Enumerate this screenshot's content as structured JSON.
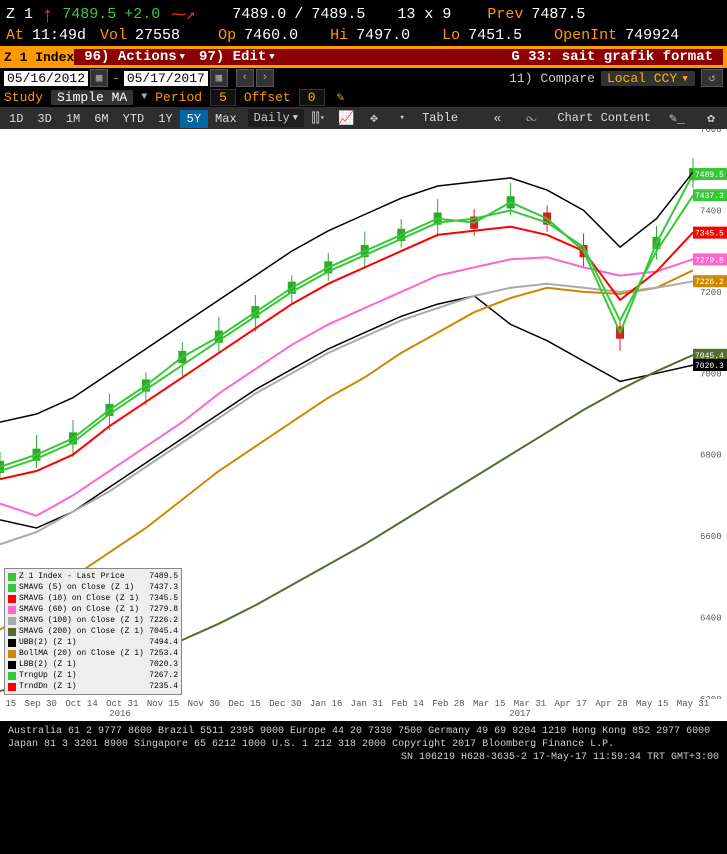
{
  "header": {
    "ticker": "Z 1",
    "last": "7489.5",
    "chg": "+2.0",
    "bid": "7489.0",
    "ask": "7489.5",
    "size": "13 x 9",
    "prev_label": "Prev",
    "prev": "7487.5",
    "at_label": "At",
    "at_time": "11:49d",
    "vol_label": "Vol",
    "vol": "27558",
    "op_label": "Op",
    "op": "7460.0",
    "hi_label": "Hi",
    "hi": "7497.0",
    "lo_label": "Lo",
    "lo": "7451.5",
    "oi_label": "OpenInt",
    "oi": "749924"
  },
  "bars": {
    "index_name": "Z 1 Index",
    "actions": "96) Actions",
    "edit": "97) Edit",
    "g33": "G 33: sait grafik format",
    "compare": "11) Compare",
    "ccy": "Local CCY"
  },
  "dates": {
    "from": "05/16/2012",
    "to": "05/17/2017"
  },
  "study": {
    "study_label": "Study",
    "study_val": "Simple MA",
    "period_label": "Period",
    "period_val": "5",
    "offset_label": "Offset",
    "offset_val": "0"
  },
  "tf": {
    "items": [
      "1D",
      "3D",
      "1M",
      "6M",
      "YTD",
      "1Y",
      "5Y",
      "Max"
    ],
    "active": "5Y",
    "daily": "Daily",
    "table": "Table",
    "chart_content": "Chart Content"
  },
  "legend": [
    {
      "label": "Z 1 Index - Last Price",
      "val": "7489.5",
      "color": "#37c837"
    },
    {
      "label": "SMAVG (5) on Close (Z 1)",
      "val": "7437.3",
      "color": "#37c837"
    },
    {
      "label": "SMAVG (10) on Close (Z 1)",
      "val": "7345.5",
      "color": "#ff0000"
    },
    {
      "label": "SMAVG (60) on Close (Z 1)",
      "val": "7279.8",
      "color": "#ff66cc"
    },
    {
      "label": "SMAVG (100) on Close (Z 1)",
      "val": "7226.2",
      "color": "#aaaaaa"
    },
    {
      "label": "SMAVG (200) on Close (Z 1)",
      "val": "7045.4",
      "color": "#556b2f"
    },
    {
      "label": "UBB(2) (Z 1)",
      "val": "7494.4",
      "color": "#000000"
    },
    {
      "label": "BollMA (20) on Close (Z 1)",
      "val": "7253.4",
      "color": "#cc8800"
    },
    {
      "label": "LBB(2) (Z 1)",
      "val": "7020.3",
      "color": "#000000"
    },
    {
      "label": "TrngUp (Z 1)",
      "val": "7267.2",
      "color": "#37c837"
    },
    {
      "label": "TrndDn (Z 1)",
      "val": "7235.4",
      "color": "#ff0000"
    }
  ],
  "chart": {
    "type": "financial-multi-line",
    "background_color": "#ffffff",
    "ymin": 6200,
    "ymax": 7600,
    "yticks": [
      6200,
      6400,
      6600,
      6800,
      7000,
      7200,
      7400,
      7600
    ],
    "ytick_color": "#5a5a5a",
    "price_tags": [
      {
        "val": "7489.5",
        "color": "#37c837"
      },
      {
        "val": "7437.3",
        "color": "#37c837"
      },
      {
        "val": "7345.5",
        "color": "#ff0000"
      },
      {
        "val": "7279.8",
        "color": "#ff66cc"
      },
      {
        "val": "7226.2",
        "color": "#cc8800"
      },
      {
        "val": "7045.4",
        "color": "#556b2f"
      },
      {
        "val": "7020.3",
        "color": "#000000"
      }
    ],
    "xticks": [
      "Sep 15",
      "Sep 30",
      "Oct 14",
      "Oct 31",
      "Nov 15",
      "Nov 30",
      "Dec 15",
      "Dec 30",
      "Jan 16",
      "Jan 31",
      "Feb 14",
      "Feb 28",
      "Mar 15",
      "Mar 31",
      "Apr 17",
      "Apr 28",
      "May 15",
      "May 31"
    ],
    "x_year_left": "2016",
    "x_year_right": "2017",
    "series": {
      "sma200": {
        "color": "#556b2f",
        "width": 2,
        "y": [
          6220,
          6235,
          6255,
          6280,
          6310,
          6345,
          6385,
          6430,
          6480,
          6530,
          6580,
          6635,
          6690,
          6745,
          6800,
          6855,
          6910,
          6960,
          7005,
          7045
        ]
      },
      "bollMA": {
        "color": "#cc8800",
        "width": 2,
        "y": [
          6370,
          6430,
          6500,
          6560,
          6620,
          6690,
          6760,
          6820,
          6880,
          6940,
          6990,
          7050,
          7100,
          7150,
          7185,
          7210,
          7200,
          7195,
          7210,
          7253
        ]
      },
      "sma100": {
        "color": "#aaaaaa",
        "width": 2,
        "y": [
          6580,
          6610,
          6660,
          6710,
          6770,
          6830,
          6890,
          6950,
          7000,
          7050,
          7090,
          7130,
          7160,
          7190,
          7210,
          7220,
          7210,
          7200,
          7210,
          7226
        ]
      },
      "sma60": {
        "color": "#ff66cc",
        "width": 2,
        "y": [
          6680,
          6650,
          6700,
          6760,
          6820,
          6880,
          6950,
          7010,
          7070,
          7120,
          7160,
          7200,
          7240,
          7260,
          7280,
          7285,
          7260,
          7240,
          7250,
          7280
        ]
      },
      "sma10": {
        "color": "#ff0000",
        "width": 2,
        "y": [
          6740,
          6760,
          6800,
          6870,
          6930,
          6990,
          7050,
          7110,
          7170,
          7220,
          7260,
          7300,
          7340,
          7350,
          7360,
          7340,
          7300,
          7180,
          7250,
          7346
        ]
      },
      "sma5": {
        "color": "#37c837",
        "width": 2,
        "y": [
          6760,
          6790,
          6830,
          6900,
          6960,
          7020,
          7080,
          7140,
          7200,
          7250,
          7290,
          7330,
          7370,
          7380,
          7400,
          7370,
          7310,
          7130,
          7300,
          7437
        ]
      },
      "ubb": {
        "color": "#000000",
        "width": 1.5,
        "y": [
          6880,
          6900,
          6940,
          7000,
          7060,
          7120,
          7180,
          7240,
          7300,
          7350,
          7390,
          7430,
          7460,
          7470,
          7480,
          7450,
          7400,
          7310,
          7380,
          7494
        ]
      },
      "lbb": {
        "color": "#000000",
        "width": 1.5,
        "y": [
          6640,
          6620,
          6660,
          6720,
          6780,
          6840,
          6900,
          6960,
          7010,
          7060,
          7100,
          7140,
          7170,
          7190,
          7120,
          7080,
          7030,
          6980,
          7000,
          7020
        ]
      },
      "price": {
        "color": "#37c837",
        "width": 2,
        "y": [
          6770,
          6800,
          6840,
          6910,
          6970,
          7040,
          7090,
          7150,
          7210,
          7260,
          7300,
          7340,
          7380,
          7370,
          7420,
          7380,
          7300,
          7100,
          7320,
          7489
        ]
      }
    }
  },
  "footer": {
    "l1": "Australia 61 2 9777 8600 Brazil 5511 2395 9000 Europe 44 20 7330 7500 Germany 49 69 9204 1210 Hong Kong 852 2977 6000",
    "l2": "Japan 81 3 3201 8900        Singapore 65 6212 1000        U.S. 1 212 318 2000            Copyright 2017 Bloomberg Finance L.P.",
    "l3": "SN 106219 H628-3635-2 17-May-17 11:59:34 TRT  GMT+3:00"
  }
}
